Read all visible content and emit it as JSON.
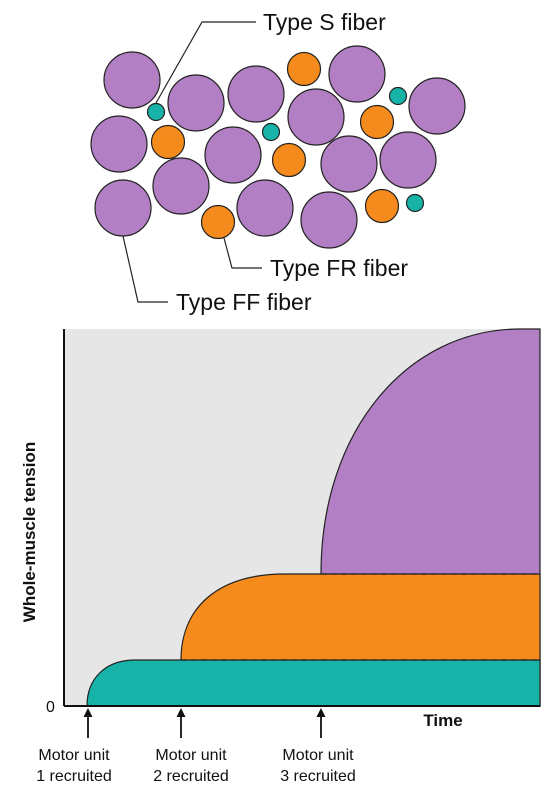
{
  "labels": {
    "type_s": "Type S fiber",
    "type_fr": "Type FR fiber",
    "type_ff": "Type FF fiber"
  },
  "graph": {
    "y_axis_label": "Whole-muscle tension",
    "x_axis_label": "Time",
    "y_zero_tick": "0"
  },
  "recruitment": [
    {
      "line1": "Motor unit",
      "line2": "1 recruited"
    },
    {
      "line1": "Motor unit",
      "line2": "2 recruited"
    },
    {
      "line1": "Motor unit",
      "line2": "3 recruited"
    }
  ],
  "colors": {
    "type_s": "#17b3a8",
    "type_fr": "#f48b1c",
    "type_ff": "#b27ec4",
    "plot_bg": "#e6e6e6",
    "outline": "#222222"
  }
}
